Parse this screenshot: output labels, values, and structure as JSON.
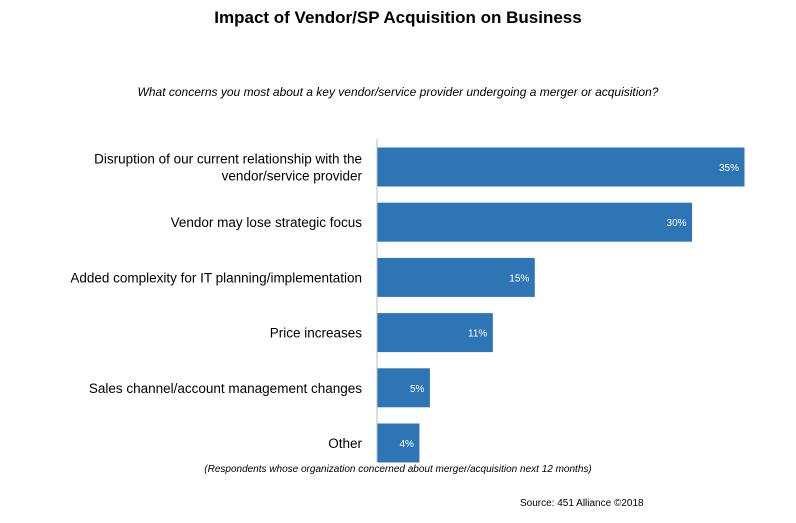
{
  "chart_data": {
    "type": "bar",
    "orientation": "horizontal",
    "title": "Impact of Vendor/SP Acquisition on Business",
    "subtitle": "What concerns you most about a key vendor/service provider undergoing a merger or acquisition?",
    "categories": [
      [
        "Disruption of our current relationship with the",
        "vendor/service provider"
      ],
      [
        "Vendor may lose strategic focus"
      ],
      [
        "Added complexity for IT planning/implementation"
      ],
      [
        "Price increases"
      ],
      [
        "Sales channel/account management changes"
      ],
      [
        "Other"
      ]
    ],
    "values": [
      35,
      30,
      15,
      11,
      5,
      4
    ],
    "value_labels": [
      "35%",
      "30%",
      "15%",
      "11%",
      "5%",
      "4%"
    ],
    "xlim": [
      0,
      35
    ],
    "bar_color": "#2e75b6",
    "axis_color": "#bfbfbf",
    "grid": false
  },
  "footnote": "(Respondents whose organization concerned about merger/acquisition next 12 months)",
  "source": "Source: 451 Alliance ©2018"
}
